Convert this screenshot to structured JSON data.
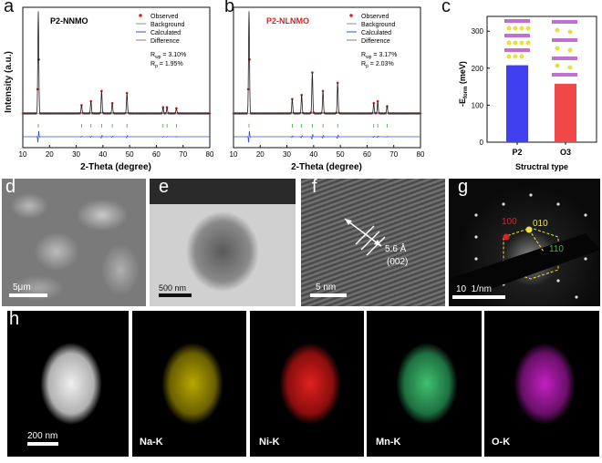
{
  "panels": {
    "a": {
      "letter": "a",
      "title": "P2-NNMO",
      "title_color": "#111111",
      "legend": [
        "Observed",
        "Background",
        "Calculated",
        "Difference"
      ],
      "rwp": "R",
      "rwp_sub": "wp",
      "rwp_val": " = 3.10%",
      "rp": "R",
      "rp_sub": "p",
      "rp_val": " = 1.95%",
      "ylabel": "Intensity (a.u.)",
      "xlabel": "2-Theta (degree)",
      "xticks": [
        "10",
        "20",
        "30",
        "40",
        "50",
        "60",
        "70",
        "80"
      ]
    },
    "b": {
      "letter": "b",
      "title": "P2-NLNMO",
      "title_color": "#e02020",
      "legend": [
        "Observed",
        "Background",
        "Calculated",
        "Difference"
      ],
      "rwp": "R",
      "rwp_sub": "wp",
      "rwp_val": " = 3.17%",
      "rp": "R",
      "rp_sub": "p",
      "rp_val": " = 2.03%",
      "xlabel": "2-Theta (degree)",
      "xticks": [
        "10",
        "20",
        "30",
        "40",
        "50",
        "60",
        "70",
        "80"
      ]
    },
    "c": {
      "letter": "c",
      "ylabel_main": "-E",
      "ylabel_sub": "form",
      "ylabel_unit": " (meV)",
      "xlabel": "Structral type",
      "yticks": [
        "0",
        "100",
        "200",
        "300"
      ]
    },
    "d": {
      "letter": "d",
      "scale": "5μm"
    },
    "e": {
      "letter": "e",
      "scale": "500 nm"
    },
    "f": {
      "letter": "f",
      "scale": "5 nm",
      "dspacing": "5.6 Å",
      "plane": "(002)"
    },
    "g": {
      "letter": "g",
      "scale": "10  1/nm",
      "spots": [
        "100",
        "010",
        "110"
      ]
    },
    "h": {
      "letter": "h",
      "scale": "200 nm",
      "maps": [
        "Na-K",
        "Ni-K",
        "Mn-K",
        "O-K"
      ]
    }
  },
  "chart_data": [
    {
      "type": "line",
      "panel": "a",
      "title": "P2-NNMO",
      "xlabel": "2-Theta (degree)",
      "ylabel": "Intensity (a.u.)",
      "xlim": [
        10,
        80
      ],
      "series": [
        {
          "name": "Observed",
          "color": "#e02020"
        },
        {
          "name": "Background",
          "color": "#9090a0"
        },
        {
          "name": "Calculated",
          "color": "#3050e0"
        },
        {
          "name": "Difference",
          "color": "#808080"
        }
      ],
      "peaks_x": [
        15.8,
        32.0,
        35.5,
        39.5,
        43.5,
        49.0,
        62.5,
        64.0,
        67.5
      ],
      "peaks_rel": [
        1.0,
        0.08,
        0.12,
        0.22,
        0.1,
        0.2,
        0.06,
        0.06,
        0.05
      ]
    },
    {
      "type": "line",
      "panel": "b",
      "title": "P2-NLNMO",
      "xlabel": "2-Theta (degree)",
      "xlim": [
        10,
        80
      ],
      "series": [
        {
          "name": "Observed",
          "color": "#e02020"
        },
        {
          "name": "Background",
          "color": "#9090a0"
        },
        {
          "name": "Calculated",
          "color": "#3050e0"
        },
        {
          "name": "Difference",
          "color": "#808080"
        }
      ],
      "peaks_x": [
        15.8,
        32.0,
        35.5,
        39.5,
        43.5,
        49.0,
        62.5,
        64.0,
        67.5
      ],
      "peaks_rel": [
        1.0,
        0.14,
        0.18,
        0.4,
        0.22,
        0.3,
        0.1,
        0.12,
        0.07
      ]
    },
    {
      "type": "bar",
      "panel": "c",
      "categories": [
        "P2",
        "O3"
      ],
      "values": [
        208,
        158
      ],
      "colors": [
        "#4040f0",
        "#f04848"
      ],
      "xlabel": "Structral type",
      "ylim": [
        0,
        340
      ]
    }
  ]
}
